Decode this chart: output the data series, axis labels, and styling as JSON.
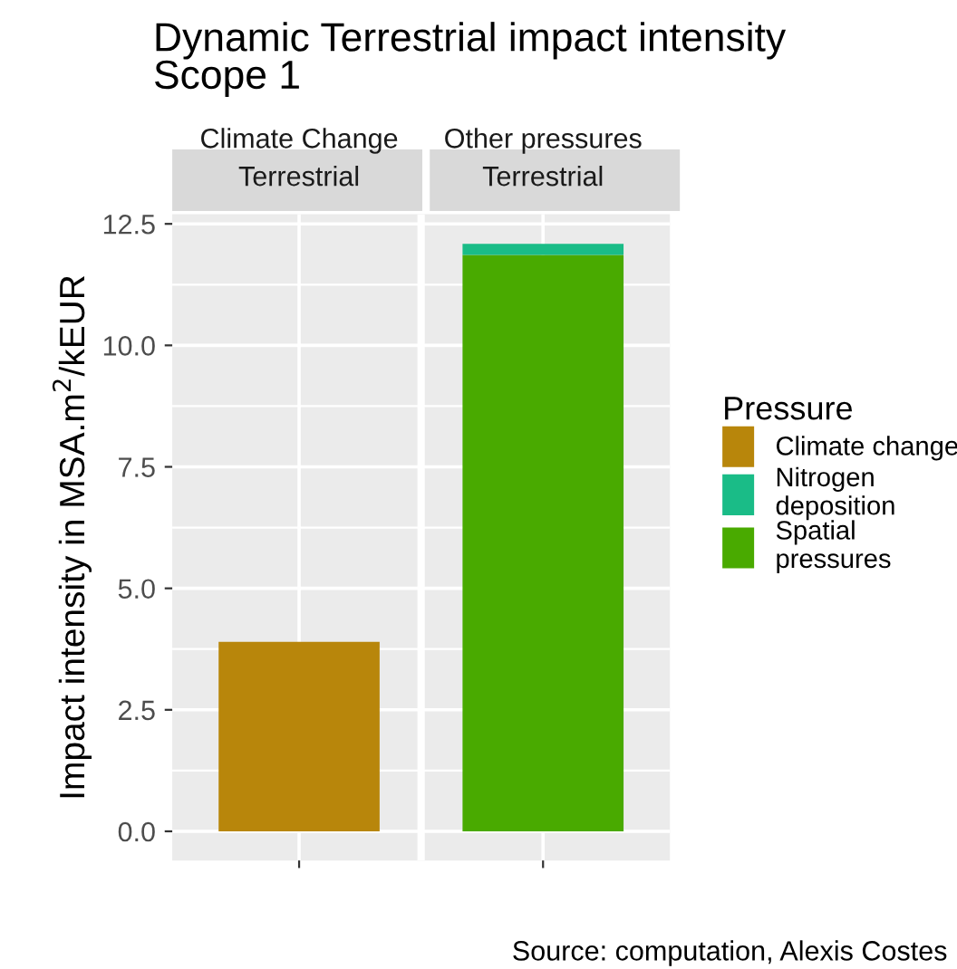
{
  "chart_data": {
    "type": "bar",
    "title": "Dynamic Terrestrial impact intensity\nScope 1",
    "ylabel": "Impact intensity in MSA.m$^{2}$/kEUR",
    "categories": [
      "Climate Change\nTerrestrial",
      "Other pressures\nTerrestrial"
    ],
    "stacked": true,
    "series": [
      {
        "name": "Climate change",
        "color": "#b8860b",
        "values": [
          3.9,
          null
        ]
      },
      {
        "name": "Spatial pressures",
        "color": "#49aa00",
        "values": [
          null,
          11.86
        ]
      },
      {
        "name": "Nitrogen deposition",
        "color": "#1abc87",
        "values": [
          null,
          0.23
        ]
      }
    ],
    "ylim": [
      -0.6,
      12.7
    ],
    "yticks": [
      {
        "value": 0,
        "label": "0.0"
      },
      {
        "value": 2.5,
        "label": "2.5"
      },
      {
        "value": 5,
        "label": "5.0"
      },
      {
        "value": 7.5,
        "label": "7.5"
      },
      {
        "value": 10,
        "label": "10.0"
      },
      {
        "value": 12.5,
        "label": "12.5"
      }
    ],
    "grid": true,
    "legend": "right",
    "legend_title": "Pressure",
    "annotations": [
      "Source: computation, Alexis Costes"
    ]
  }
}
